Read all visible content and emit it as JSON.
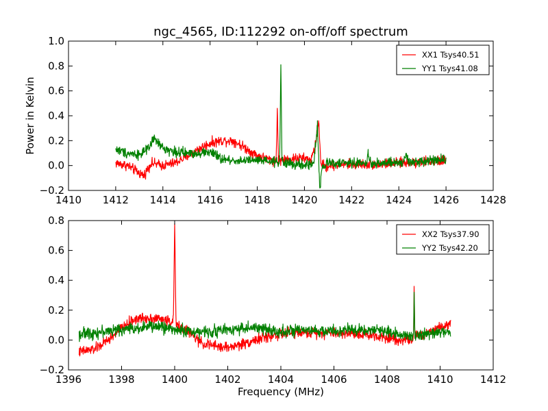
{
  "figure": {
    "title": "ngc_4565, ID:112292 on-off/off spectrum",
    "ylabel": "Power in Kelvin",
    "xlabel": "Frequency (MHz)"
  },
  "chart_data": [
    {
      "type": "line",
      "xlim": [
        1410,
        1428
      ],
      "ylim": [
        -0.2,
        1.0
      ],
      "x_ticks": [
        1410,
        1412,
        1414,
        1416,
        1418,
        1420,
        1422,
        1424,
        1426,
        1428
      ],
      "y_ticks": [
        -0.2,
        0.0,
        0.2,
        0.4,
        0.6,
        0.8,
        1.0
      ],
      "x_tick_labels": [
        "1410",
        "1412",
        "1414",
        "1416",
        "1418",
        "1420",
        "1422",
        "1424",
        "1426",
        "1428"
      ],
      "y_tick_labels": [
        "−0.2",
        "0.0",
        "0.2",
        "0.4",
        "0.6",
        "0.8",
        "1.0"
      ],
      "legend_position": "top-right",
      "grid": false,
      "series": [
        {
          "name": "XX1 Tsys40.51",
          "color": "#ff0000",
          "x": [
            1412.0,
            1412.5,
            1413.0,
            1413.2,
            1413.5,
            1414.0,
            1414.5,
            1415.0,
            1415.5,
            1416.0,
            1416.5,
            1417.0,
            1417.5,
            1418.0,
            1418.5,
            1418.8,
            1418.85,
            1418.9,
            1419.2,
            1419.8,
            1420.3,
            1420.5,
            1420.6,
            1420.7,
            1420.9,
            1421.5,
            1422.0,
            1423.0,
            1424.0,
            1425.0,
            1426.0
          ],
          "y": [
            0.02,
            0.0,
            -0.06,
            -0.08,
            0.02,
            0.0,
            0.02,
            0.07,
            0.13,
            0.18,
            0.2,
            0.2,
            0.14,
            0.08,
            0.05,
            0.04,
            0.46,
            0.04,
            0.05,
            0.06,
            0.05,
            0.2,
            0.36,
            0.02,
            -0.01,
            0.01,
            0.01,
            0.01,
            0.02,
            0.03,
            0.04
          ],
          "noise": 0.028
        },
        {
          "name": "YY1 Tsys41.08",
          "color": "#008000",
          "x": [
            1412.0,
            1412.5,
            1413.0,
            1413.4,
            1413.6,
            1414.0,
            1414.5,
            1415.0,
            1415.5,
            1416.0,
            1416.5,
            1417.0,
            1417.5,
            1418.0,
            1418.5,
            1418.95,
            1419.0,
            1419.05,
            1419.5,
            1420.0,
            1420.4,
            1420.55,
            1420.65,
            1420.75,
            1421.0,
            1422.0,
            1422.65,
            1422.7,
            1422.75,
            1423.5,
            1424.2,
            1424.3,
            1424.4,
            1425.0,
            1426.0
          ],
          "y": [
            0.13,
            0.1,
            0.09,
            0.13,
            0.22,
            0.14,
            0.11,
            0.1,
            0.1,
            0.11,
            0.05,
            0.04,
            0.04,
            0.04,
            0.03,
            0.03,
            0.81,
            0.03,
            0.01,
            0.0,
            0.02,
            0.33,
            -0.18,
            -0.02,
            0.02,
            0.02,
            0.02,
            0.13,
            0.02,
            0.02,
            0.02,
            0.1,
            0.02,
            0.04,
            0.05
          ],
          "noise": 0.028
        }
      ]
    },
    {
      "type": "line",
      "xlim": [
        1396,
        1412
      ],
      "ylim": [
        -0.2,
        0.8
      ],
      "x_ticks": [
        1396,
        1398,
        1400,
        1402,
        1404,
        1406,
        1408,
        1410,
        1412
      ],
      "y_ticks": [
        -0.2,
        0.0,
        0.2,
        0.4,
        0.6,
        0.8
      ],
      "x_tick_labels": [
        "1396",
        "1398",
        "1400",
        "1402",
        "1404",
        "1406",
        "1408",
        "1410",
        "1412"
      ],
      "y_tick_labels": [
        "−0.2",
        "0.0",
        "0.2",
        "0.4",
        "0.6",
        "0.8"
      ],
      "legend_position": "top-right",
      "grid": false,
      "series": [
        {
          "name": "XX2 Tsys37.90",
          "color": "#ff0000",
          "x": [
            1396.4,
            1397.0,
            1397.5,
            1398.0,
            1398.5,
            1399.0,
            1399.5,
            1399.95,
            1400.0,
            1400.05,
            1400.5,
            1401.0,
            1401.5,
            1402.0,
            1402.5,
            1403.0,
            1403.5,
            1404.0,
            1404.5,
            1405.0,
            1406.0,
            1407.0,
            1407.5,
            1408.0,
            1408.5,
            1409.0,
            1409.02,
            1409.05,
            1409.5,
            1410.0,
            1410.4
          ],
          "y": [
            -0.08,
            -0.06,
            0.0,
            0.08,
            0.14,
            0.15,
            0.14,
            0.12,
            0.78,
            0.1,
            0.06,
            -0.02,
            -0.04,
            -0.05,
            -0.03,
            0.0,
            0.02,
            0.04,
            0.05,
            0.05,
            0.05,
            0.04,
            0.03,
            0.02,
            0.0,
            0.01,
            0.36,
            0.02,
            0.05,
            0.09,
            0.11
          ],
          "noise": 0.025
        },
        {
          "name": "YY2 Tsys42.20",
          "color": "#008000",
          "x": [
            1396.4,
            1397.0,
            1397.5,
            1398.0,
            1398.5,
            1399.0,
            1399.5,
            1400.0,
            1400.5,
            1401.0,
            1401.5,
            1402.0,
            1402.5,
            1403.0,
            1403.5,
            1404.0,
            1404.5,
            1405.0,
            1406.0,
            1407.0,
            1408.0,
            1408.5,
            1409.0,
            1409.02,
            1409.05,
            1409.5,
            1410.0,
            1410.4
          ],
          "y": [
            0.04,
            0.05,
            0.06,
            0.07,
            0.08,
            0.09,
            0.09,
            0.07,
            0.06,
            0.05,
            0.06,
            0.07,
            0.08,
            0.08,
            0.07,
            0.06,
            0.06,
            0.06,
            0.06,
            0.07,
            0.06,
            0.04,
            0.03,
            0.32,
            0.03,
            0.04,
            0.05,
            0.06
          ],
          "noise": 0.028
        }
      ]
    }
  ]
}
